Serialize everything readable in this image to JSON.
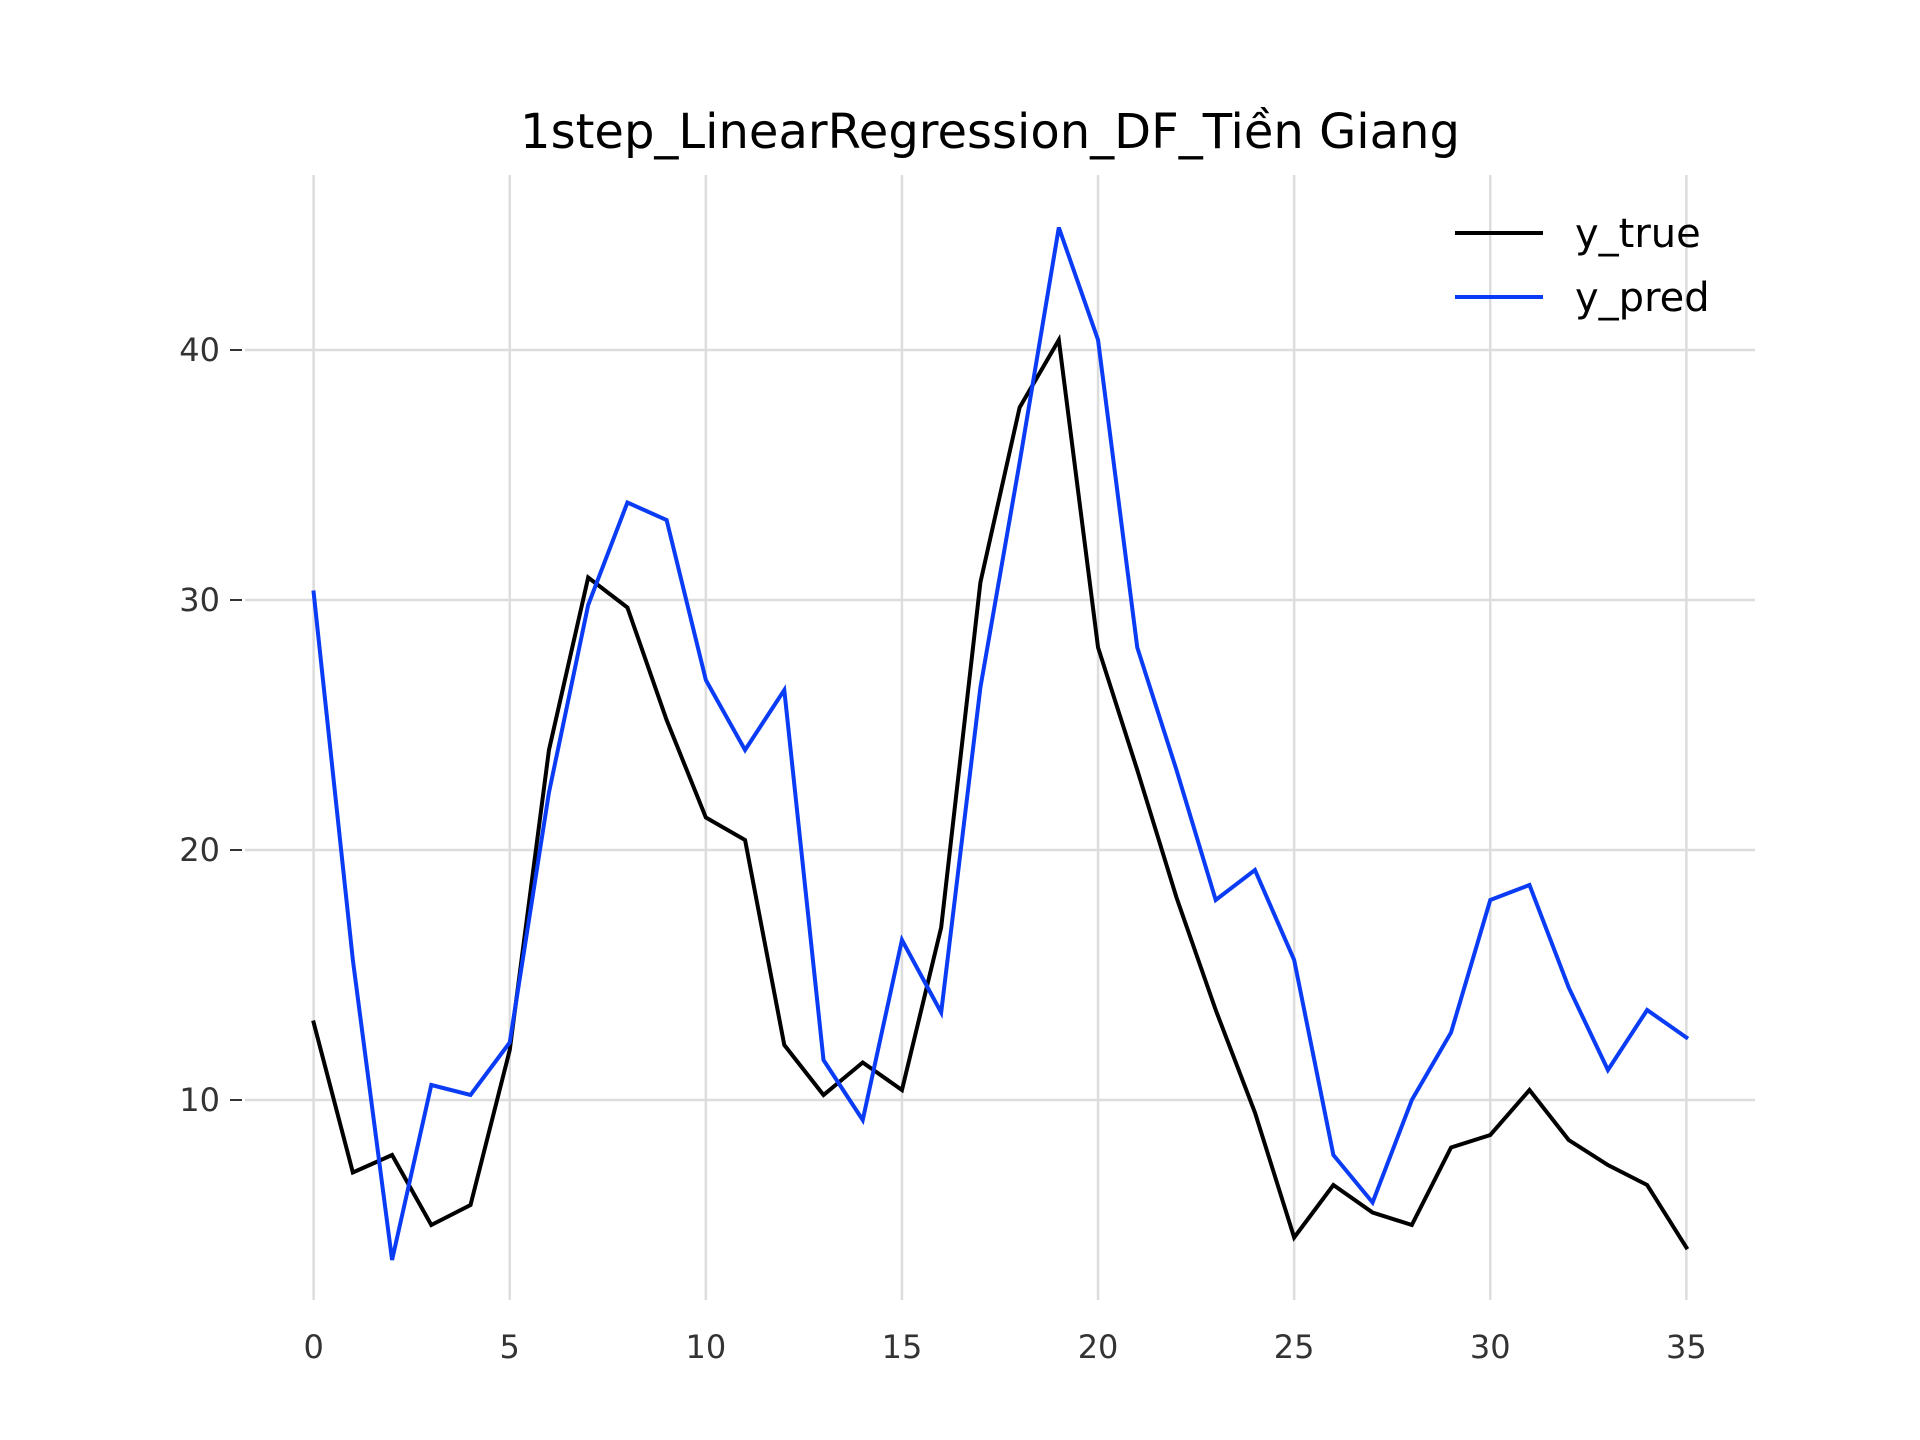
{
  "chart_data": {
    "type": "line",
    "title": "1step_LinearRegression_DF_Tiền Giang",
    "xlabel": "",
    "ylabel": "",
    "xlim": [
      -1.75,
      36.75
    ],
    "ylim": [
      2.0,
      47.0
    ],
    "xticks": [
      0,
      5,
      10,
      15,
      20,
      25,
      30,
      35
    ],
    "yticks": [
      10,
      20,
      30,
      40
    ],
    "grid": true,
    "legend_position": "top-right",
    "x": [
      0,
      1,
      2,
      3,
      4,
      5,
      6,
      7,
      8,
      9,
      10,
      11,
      12,
      13,
      14,
      15,
      16,
      17,
      18,
      19,
      20,
      21,
      22,
      23,
      24,
      25,
      26,
      27,
      28,
      29,
      30,
      31,
      32,
      33,
      34,
      35
    ],
    "series": [
      {
        "name": "y_true",
        "color": "#000000",
        "values": [
          13.1,
          7.1,
          7.8,
          5.0,
          5.8,
          12.0,
          24.0,
          30.9,
          29.7,
          25.2,
          21.3,
          20.4,
          12.2,
          10.2,
          11.5,
          10.4,
          16.9,
          30.7,
          37.7,
          40.4,
          28.1,
          23.2,
          18.1,
          13.6,
          9.5,
          4.5,
          6.6,
          5.5,
          5.0,
          8.1,
          8.6,
          10.4,
          8.4,
          7.4,
          6.6,
          4.1
        ]
      },
      {
        "name": "y_pred",
        "color": "#0a3cf5",
        "values": [
          30.3,
          15.6,
          3.6,
          10.6,
          10.2,
          12.3,
          22.3,
          29.8,
          33.9,
          33.2,
          26.8,
          24.0,
          26.4,
          11.6,
          9.2,
          16.4,
          13.5,
          26.5,
          35.5,
          44.9,
          40.4,
          28.1,
          23.2,
          18.0,
          19.2,
          15.6,
          7.8,
          5.9,
          10.0,
          12.7,
          18.0,
          18.6,
          14.5,
          11.2,
          13.6,
          12.5
        ]
      }
    ]
  }
}
